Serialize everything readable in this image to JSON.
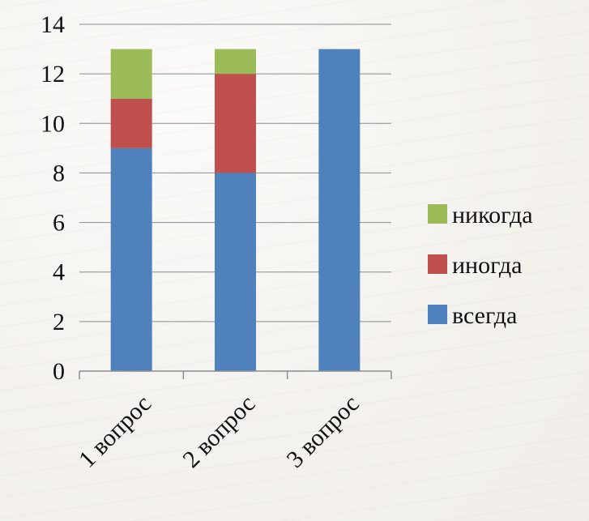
{
  "chart_data": {
    "type": "bar",
    "stacked": true,
    "categories": [
      "1 вопрос",
      "2 вопрос",
      "3 вопрос"
    ],
    "series": [
      {
        "name": "всегда",
        "color": "#4f81bd",
        "values": [
          9,
          8,
          13
        ]
      },
      {
        "name": "иногда",
        "color": "#c0504d",
        "values": [
          2,
          4,
          0
        ]
      },
      {
        "name": "никогда",
        "color": "#9bbb59",
        "values": [
          2,
          1,
          0
        ]
      }
    ],
    "ylim": [
      0,
      14
    ],
    "yticks": [
      0,
      2,
      4,
      6,
      8,
      10,
      12,
      14
    ],
    "grid": true,
    "legend_position": "right"
  }
}
